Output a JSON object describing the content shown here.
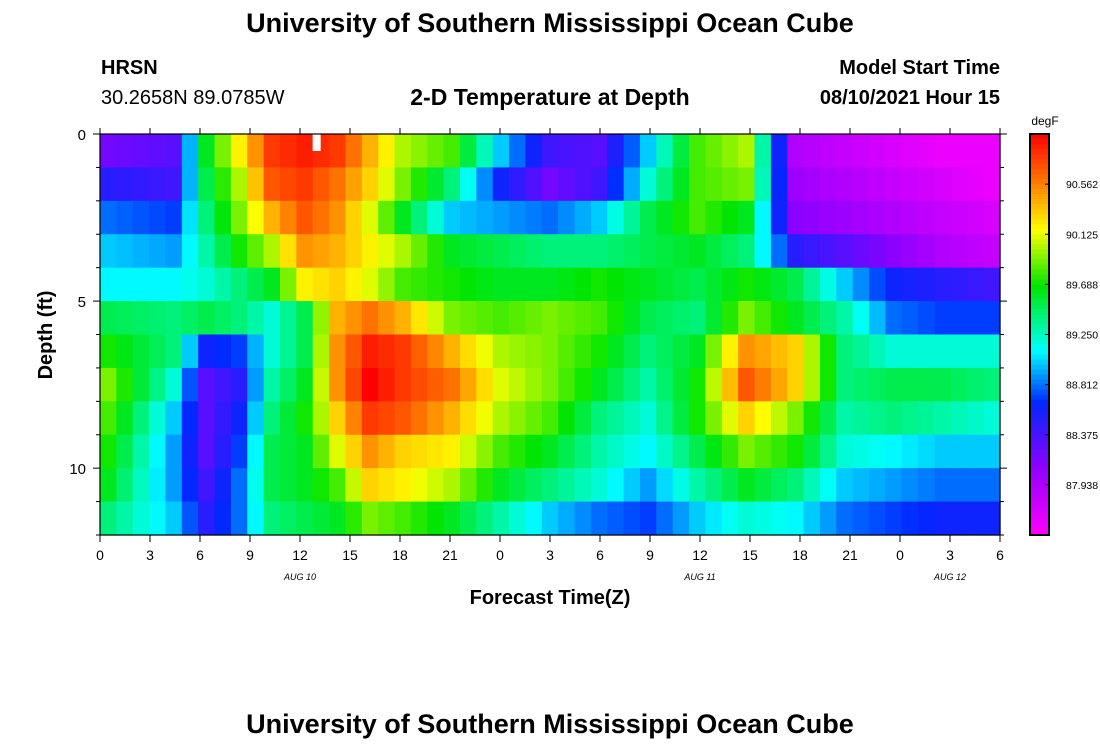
{
  "header": {
    "title": "University of Southern Mississippi Ocean Cube",
    "station": "HRSN",
    "coords": "30.2658N  89.0785W",
    "plot_title": "2-D Temperature at Depth",
    "model_label": "Model Start Time",
    "model_time": "08/10/2021 Hour 15"
  },
  "footer": {
    "title": "University of Southern Mississippi Ocean Cube"
  },
  "chart_data": {
    "type": "heatmap",
    "title": "2-D Temperature at Depth",
    "xlabel": "Forecast Time(Z)",
    "ylabel": "Depth (ft)",
    "x_tick_labels": [
      "0",
      "3",
      "6",
      "9",
      "12",
      "15",
      "18",
      "21",
      "0",
      "3",
      "6",
      "9",
      "12",
      "15",
      "18",
      "21",
      "0",
      "3",
      "6"
    ],
    "date_labels": [
      "AUG 10",
      "AUG 11",
      "AUG 12"
    ],
    "y_tick_labels": [
      "0",
      "5",
      "10"
    ],
    "colorbar": {
      "unit": "degF",
      "tick_labels": [
        "90.562",
        "90.125",
        "89.688",
        "89.250",
        "88.812",
        "88.375",
        "87.938"
      ],
      "range": [
        87.5,
        91.0
      ]
    },
    "x_hours": [
      0,
      1,
      2,
      3,
      4,
      5,
      6,
      7,
      8,
      9,
      10,
      11,
      12,
      13,
      14,
      15,
      16,
      17,
      18,
      19,
      20,
      21,
      22,
      23,
      24,
      25,
      26,
      27,
      28,
      29,
      30,
      31,
      32,
      33,
      34,
      35,
      36,
      37,
      38,
      39,
      40,
      41,
      42,
      43,
      44,
      45,
      46,
      47,
      48,
      49,
      50,
      51,
      52,
      53,
      54
    ],
    "depths_ft": [
      0.5,
      1.5,
      2.5,
      3.5,
      4.5,
      5.5,
      6.5,
      7.5,
      8.5,
      9.5,
      10.5,
      11.5
    ],
    "anchor_hours": [
      0,
      4,
      6,
      8,
      10,
      12,
      14,
      16,
      18,
      21,
      24,
      27,
      30,
      33,
      36,
      39,
      42,
      45,
      48,
      51,
      54
    ],
    "anchor_values": [
      [
        88.2,
        88.3,
        89.6,
        90.2,
        90.8,
        90.9,
        90.8,
        90.4,
        90.0,
        89.8,
        89.0,
        88.4,
        88.3,
        89.0,
        89.8,
        90.0,
        87.9,
        87.8,
        87.7,
        87.6,
        87.6
      ],
      [
        88.5,
        88.4,
        89.5,
        90.0,
        90.7,
        90.8,
        90.6,
        90.3,
        89.9,
        89.4,
        88.6,
        88.2,
        88.4,
        89.2,
        89.8,
        89.9,
        88.0,
        87.9,
        87.8,
        87.7,
        87.6
      ],
      [
        88.8,
        88.7,
        89.4,
        89.9,
        90.4,
        90.7,
        90.5,
        90.1,
        89.6,
        89.0,
        88.9,
        88.8,
        89.0,
        89.5,
        89.8,
        89.6,
        88.1,
        88.0,
        87.9,
        87.8,
        87.7
      ],
      [
        89.0,
        88.9,
        89.3,
        89.7,
        90.0,
        90.5,
        90.4,
        90.2,
        90.0,
        89.6,
        89.5,
        89.4,
        89.4,
        89.5,
        89.6,
        89.4,
        88.5,
        88.3,
        88.1,
        87.9,
        87.8
      ],
      [
        89.1,
        89.1,
        89.2,
        89.4,
        89.6,
        90.2,
        90.3,
        90.1,
        89.8,
        89.7,
        89.6,
        89.6,
        89.7,
        89.6,
        89.5,
        89.7,
        89.5,
        89.0,
        88.6,
        88.5,
        88.4
      ],
      [
        89.5,
        89.4,
        89.5,
        89.4,
        89.2,
        89.5,
        90.4,
        90.6,
        90.4,
        89.9,
        89.8,
        89.9,
        89.8,
        89.5,
        89.4,
        89.9,
        89.6,
        89.3,
        88.8,
        88.7,
        88.7
      ],
      [
        89.7,
        89.4,
        88.6,
        88.7,
        89.2,
        89.5,
        90.5,
        90.9,
        90.8,
        90.4,
        90.0,
        89.9,
        89.7,
        89.4,
        89.6,
        90.5,
        90.3,
        89.4,
        89.2,
        89.2,
        89.2
      ],
      [
        89.9,
        89.2,
        88.3,
        88.5,
        89.3,
        89.6,
        90.5,
        91.0,
        90.8,
        90.6,
        90.1,
        89.9,
        89.6,
        89.3,
        89.7,
        90.7,
        90.3,
        89.4,
        89.5,
        89.5,
        89.4
      ],
      [
        89.8,
        89.0,
        88.3,
        88.6,
        89.4,
        89.7,
        90.3,
        90.8,
        90.7,
        90.4,
        90.0,
        89.8,
        89.4,
        89.2,
        89.7,
        90.3,
        89.9,
        89.3,
        89.4,
        89.3,
        89.2
      ],
      [
        89.7,
        88.9,
        88.3,
        88.7,
        89.5,
        89.6,
        90.1,
        90.5,
        90.3,
        90.2,
        89.8,
        89.6,
        89.3,
        89.1,
        89.5,
        89.9,
        89.7,
        89.2,
        89.1,
        89.0,
        89.0
      ],
      [
        89.6,
        88.9,
        88.4,
        88.8,
        89.5,
        89.6,
        89.8,
        90.3,
        90.2,
        90.0,
        89.6,
        89.4,
        89.2,
        88.9,
        89.3,
        89.6,
        89.4,
        89.0,
        88.9,
        88.8,
        88.8
      ],
      [
        89.4,
        89.0,
        88.5,
        88.8,
        89.4,
        89.5,
        89.6,
        89.9,
        89.8,
        89.6,
        89.3,
        89.0,
        88.8,
        88.7,
        89.0,
        89.2,
        89.1,
        88.8,
        88.7,
        88.6,
        88.6
      ]
    ],
    "marker_hour": 13
  }
}
